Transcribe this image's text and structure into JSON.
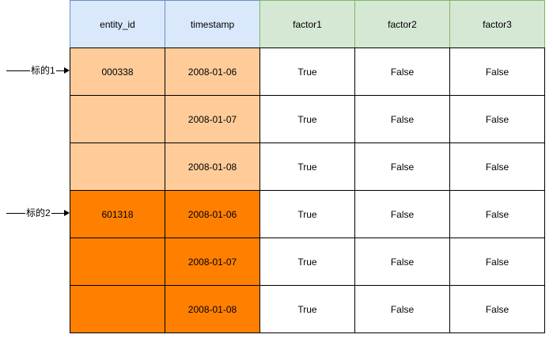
{
  "colors": {
    "blue_header_fill": "#dae8fc",
    "blue_header_stroke": "#6c8ebf",
    "green_header_fill": "#d5e8d4",
    "green_header_stroke": "#82b366",
    "light_orange_fill": "#ffcc99",
    "orange_fill": "#ff8000",
    "grid_stroke": "#000000",
    "white": "#ffffff"
  },
  "table": {
    "columns": [
      "entity_id",
      "timestamp",
      "factor1",
      "factor2",
      "factor3"
    ],
    "rows": [
      {
        "entity_id": "000338",
        "timestamp": "2008-01-06",
        "factor1": "True",
        "factor2": "False",
        "factor3": "False",
        "group": 1
      },
      {
        "entity_id": "",
        "timestamp": "2008-01-07",
        "factor1": "True",
        "factor2": "False",
        "factor3": "False",
        "group": 1
      },
      {
        "entity_id": "",
        "timestamp": "2008-01-08",
        "factor1": "True",
        "factor2": "False",
        "factor3": "False",
        "group": 1
      },
      {
        "entity_id": "601318",
        "timestamp": "2008-01-06",
        "factor1": "True",
        "factor2": "False",
        "factor3": "False",
        "group": 2
      },
      {
        "entity_id": "",
        "timestamp": "2008-01-07",
        "factor1": "True",
        "factor2": "False",
        "factor3": "False",
        "group": 2
      },
      {
        "entity_id": "",
        "timestamp": "2008-01-08",
        "factor1": "True",
        "factor2": "False",
        "factor3": "False",
        "group": 2
      }
    ]
  },
  "arrows": [
    {
      "label": "标的1",
      "row": 0
    },
    {
      "label": "标的2",
      "row": 3
    }
  ]
}
